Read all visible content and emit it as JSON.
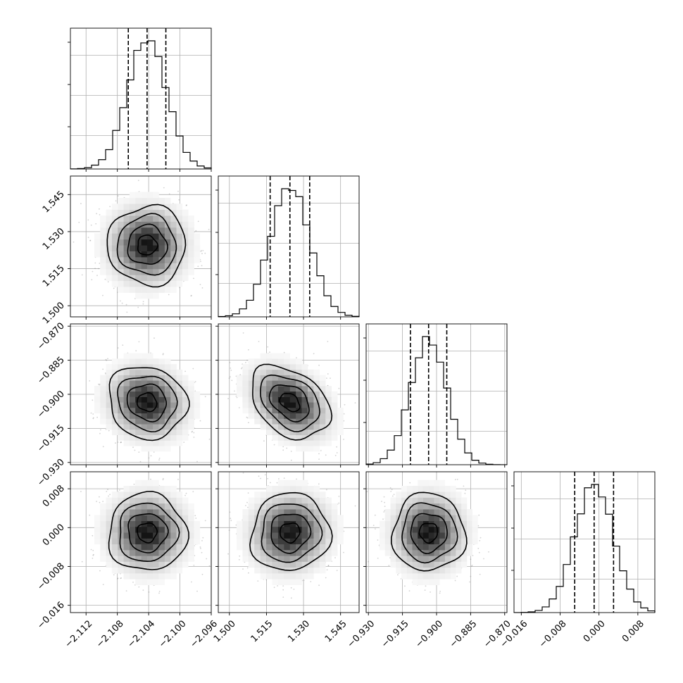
{
  "chart_data": {
    "type": "corner",
    "title": "",
    "parameters": [
      {
        "range": [
          -2.114,
          -2.096
        ],
        "ticks": [
          -2.112,
          -2.108,
          -2.104,
          -2.1,
          -2.096
        ],
        "tick_labels": [
          "−2.112",
          "−2.108",
          "−2.104",
          "−2.100",
          "−2.096"
        ],
        "median": -2.1042,
        "quantiles": [
          -2.1066,
          -2.1042,
          -2.1018
        ],
        "std": 0.0025
      },
      {
        "range": [
          1.4955,
          1.5525
        ],
        "ticks": [
          1.5,
          1.515,
          1.53,
          1.545
        ],
        "tick_labels": [
          "1.500",
          "1.515",
          "1.530",
          "1.545"
        ],
        "median": 1.5245,
        "quantiles": [
          1.5165,
          1.5245,
          1.5325
        ],
        "std": 0.008
      },
      {
        "range": [
          -0.931,
          -0.869
        ],
        "ticks": [
          -0.93,
          -0.915,
          -0.9,
          -0.885,
          -0.87
        ],
        "tick_labels": [
          "−0.930",
          "−0.915",
          "−0.900",
          "−0.885",
          "−0.870"
        ],
        "median": -0.9035,
        "quantiles": [
          -0.9115,
          -0.9035,
          -0.8955
        ],
        "std": 0.008
      },
      {
        "range": [
          -0.0175,
          0.0115
        ],
        "ticks": [
          -0.016,
          -0.008,
          0.0,
          0.008
        ],
        "tick_labels": [
          "−0.016",
          "−0.008",
          "0.000",
          "0.008"
        ],
        "median": -0.001,
        "quantiles": [
          -0.005,
          -0.001,
          0.003
        ],
        "std": 0.004
      }
    ],
    "correlations": {
      "1-0": 0.0,
      "2-0": -0.1,
      "2-1": -0.35,
      "3-0": 0.0,
      "3-1": 0.05,
      "3-2": 0.0
    },
    "hist_bins": 20,
    "contour_levels_sigma": [
      0.5,
      1.0,
      1.5,
      2.0
    ],
    "grid": true,
    "colors": {
      "line": "#000000",
      "grid": "#b0b0b0",
      "points": "#808080"
    }
  }
}
